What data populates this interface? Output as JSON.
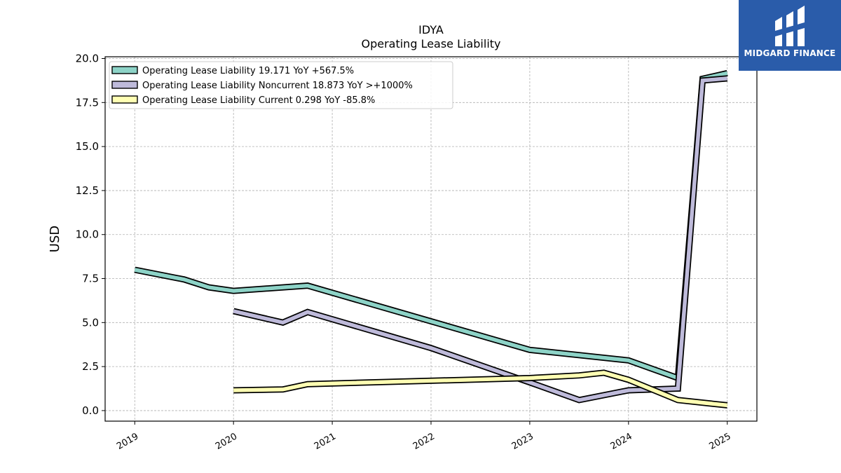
{
  "brand": {
    "name": "MIDGARD FINANCE",
    "icon": "midgard-logo-icon",
    "color": "#2a5caa"
  },
  "chart_data": {
    "type": "line",
    "title": "IDYA",
    "subtitle": "Operating Lease Liability",
    "xlabel": "",
    "ylabel": "USD",
    "ylim": [
      -0.6,
      20.1
    ],
    "xlim": [
      2018.7,
      2025.3
    ],
    "yticks": [
      0.0,
      2.5,
      5.0,
      7.5,
      10.0,
      12.5,
      15.0,
      17.5,
      20.0
    ],
    "ytick_labels": [
      "0.0",
      "2.5",
      "5.0",
      "7.5",
      "10.0",
      "12.5",
      "15.0",
      "17.5",
      "20.0"
    ],
    "xticks": [
      2019,
      2020,
      2021,
      2022,
      2023,
      2024,
      2025
    ],
    "xtick_labels": [
      "2019",
      "2020",
      "2021",
      "2022",
      "2023",
      "2024",
      "2025"
    ],
    "grid": true,
    "legend_position": "top-left",
    "series": [
      {
        "name": "Operating Lease Liability",
        "legend_label": "Operating Lease Liability  19.171 YoY +567.5%",
        "color": "#8dd3c7",
        "points": [
          [
            2019.0,
            8.0
          ],
          [
            2019.5,
            7.45
          ],
          [
            2019.75,
            7.0
          ],
          [
            2020.0,
            6.8
          ],
          [
            2020.5,
            7.0
          ],
          [
            2020.75,
            7.1
          ],
          [
            2023.0,
            3.45
          ],
          [
            2024.0,
            2.85
          ],
          [
            2024.25,
            2.35
          ],
          [
            2024.5,
            1.85
          ],
          [
            2024.75,
            18.85
          ],
          [
            2025.0,
            19.17
          ]
        ]
      },
      {
        "name": "Operating Lease Liability Noncurrent",
        "legend_label": "Operating Lease Liability Noncurrent  18.873 YoY >+1000%",
        "color": "#bebada",
        "points": [
          [
            2020.0,
            5.65
          ],
          [
            2020.5,
            5.0
          ],
          [
            2020.75,
            5.6
          ],
          [
            2022.0,
            3.55
          ],
          [
            2023.0,
            1.6
          ],
          [
            2023.5,
            0.6
          ],
          [
            2024.0,
            1.15
          ],
          [
            2024.5,
            1.25
          ],
          [
            2024.75,
            18.75
          ],
          [
            2025.0,
            18.87
          ]
        ]
      },
      {
        "name": "Operating Lease Liability Current",
        "legend_label": "Operating Lease Liability Current  0.298 YoY -85.8%",
        "color": "#ffffb3",
        "points": [
          [
            2020.0,
            1.15
          ],
          [
            2020.5,
            1.2
          ],
          [
            2020.75,
            1.5
          ],
          [
            2023.0,
            1.85
          ],
          [
            2023.5,
            2.0
          ],
          [
            2023.75,
            2.15
          ],
          [
            2024.0,
            1.75
          ],
          [
            2024.5,
            0.6
          ],
          [
            2025.0,
            0.3
          ]
        ]
      }
    ]
  }
}
